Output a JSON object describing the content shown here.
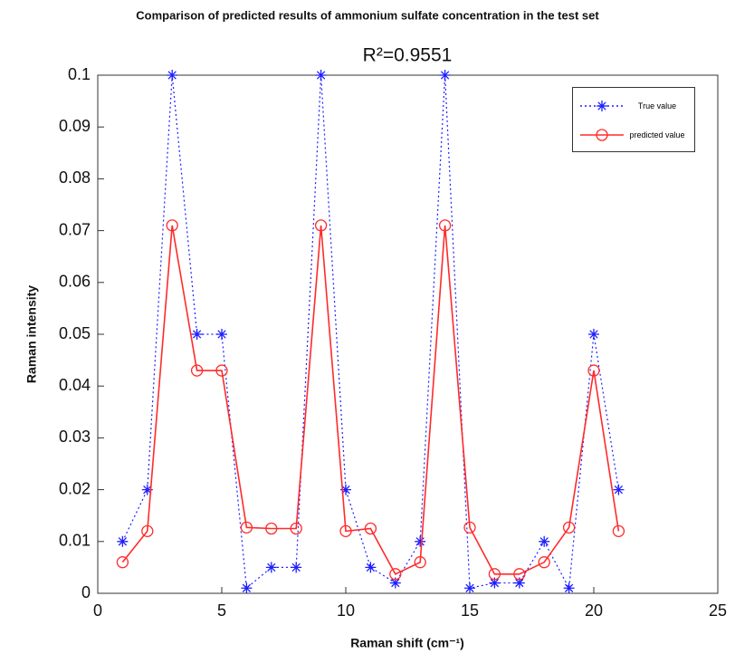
{
  "chart_data": {
    "type": "line",
    "title": "Comparison of predicted results of ammonium sulfate concentration in the test set",
    "subtitle": "R²=0.9551",
    "x_label": "Raman shift (cm⁻¹)",
    "y_label": "Raman intensity",
    "x": [
      1,
      2,
      3,
      4,
      5,
      6,
      7,
      8,
      9,
      10,
      11,
      12,
      13,
      14,
      15,
      16,
      17,
      18,
      19,
      20,
      21
    ],
    "series": [
      {
        "name": "True value",
        "color": "#1f1fff",
        "marker": "*",
        "linestyle": "dotted",
        "values": [
          0.01,
          0.02,
          0.1,
          0.05,
          0.05,
          0.001,
          0.005,
          0.005,
          0.1,
          0.02,
          0.005,
          0.002,
          0.01,
          0.1,
          0.001,
          0.002,
          0.002,
          0.01,
          0.001,
          0.05,
          0.02
        ]
      },
      {
        "name": "predicted value",
        "color": "#ff2a2a",
        "marker": "o",
        "linestyle": "solid",
        "values": [
          0.006,
          0.012,
          0.071,
          0.043,
          0.043,
          0.0127,
          0.0125,
          0.0125,
          0.071,
          0.012,
          0.0125,
          0.0037,
          0.006,
          0.071,
          0.0127,
          0.0037,
          0.0037,
          0.006,
          0.0127,
          0.043,
          0.012
        ]
      }
    ],
    "xlim": [
      0,
      25
    ],
    "xticks": [
      0,
      5,
      10,
      15,
      20,
      25
    ],
    "ylim": [
      0,
      0.1
    ],
    "yticks": [
      0,
      0.01,
      0.02,
      0.03,
      0.04,
      0.05,
      0.06,
      0.07,
      0.08,
      0.09,
      0.1
    ],
    "grid": false,
    "legend": "upper right"
  }
}
